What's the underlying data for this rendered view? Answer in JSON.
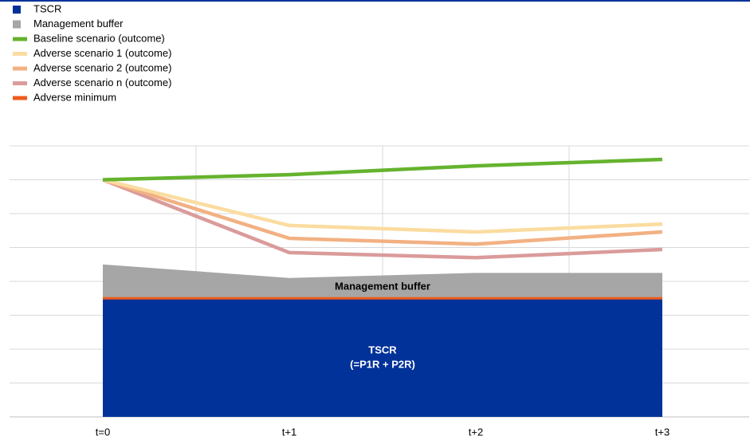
{
  "chart_data": {
    "type": "area-line",
    "categories": [
      "t=0",
      "t+1",
      "t+2",
      "t+3"
    ],
    "ylim": [
      0,
      8
    ],
    "yticks": [
      0,
      1,
      2,
      3,
      4,
      5,
      6,
      7,
      8
    ],
    "grid": true,
    "legend": "top-left",
    "series": [
      {
        "name": "TSCR",
        "kind": "area",
        "color": "#003299",
        "values": [
          3.5,
          3.5,
          3.5,
          3.5
        ]
      },
      {
        "name": "Management buffer",
        "kind": "area",
        "color": "#a6a6a6",
        "values": [
          1.0,
          0.6,
          0.75,
          0.75
        ]
      },
      {
        "name": "Baseline scenario (outcome)",
        "kind": "line",
        "color": "#65b32e",
        "values": [
          7.0,
          7.15,
          7.41,
          7.6
        ]
      },
      {
        "name": "Adverse scenario 1 (outcome)",
        "kind": "line",
        "color": "#fbdca0",
        "values": [
          7.0,
          5.65,
          5.46,
          5.69
        ]
      },
      {
        "name": "Adverse scenario 2 (outcome)",
        "kind": "line",
        "color": "#f2b183",
        "values": [
          7.0,
          5.27,
          5.1,
          5.46
        ]
      },
      {
        "name": "Adverse scenario n (outcome)",
        "kind": "line",
        "color": "#db9b9b",
        "values": [
          7.0,
          4.85,
          4.7,
          4.94
        ]
      },
      {
        "name": "Adverse minimum",
        "kind": "line",
        "color": "#f05a1a",
        "values": [
          3.5,
          3.5,
          3.5,
          3.5
        ]
      }
    ],
    "annotations": [
      "Management buffer",
      "TSCR",
      "(=P1R + P2R)"
    ]
  }
}
